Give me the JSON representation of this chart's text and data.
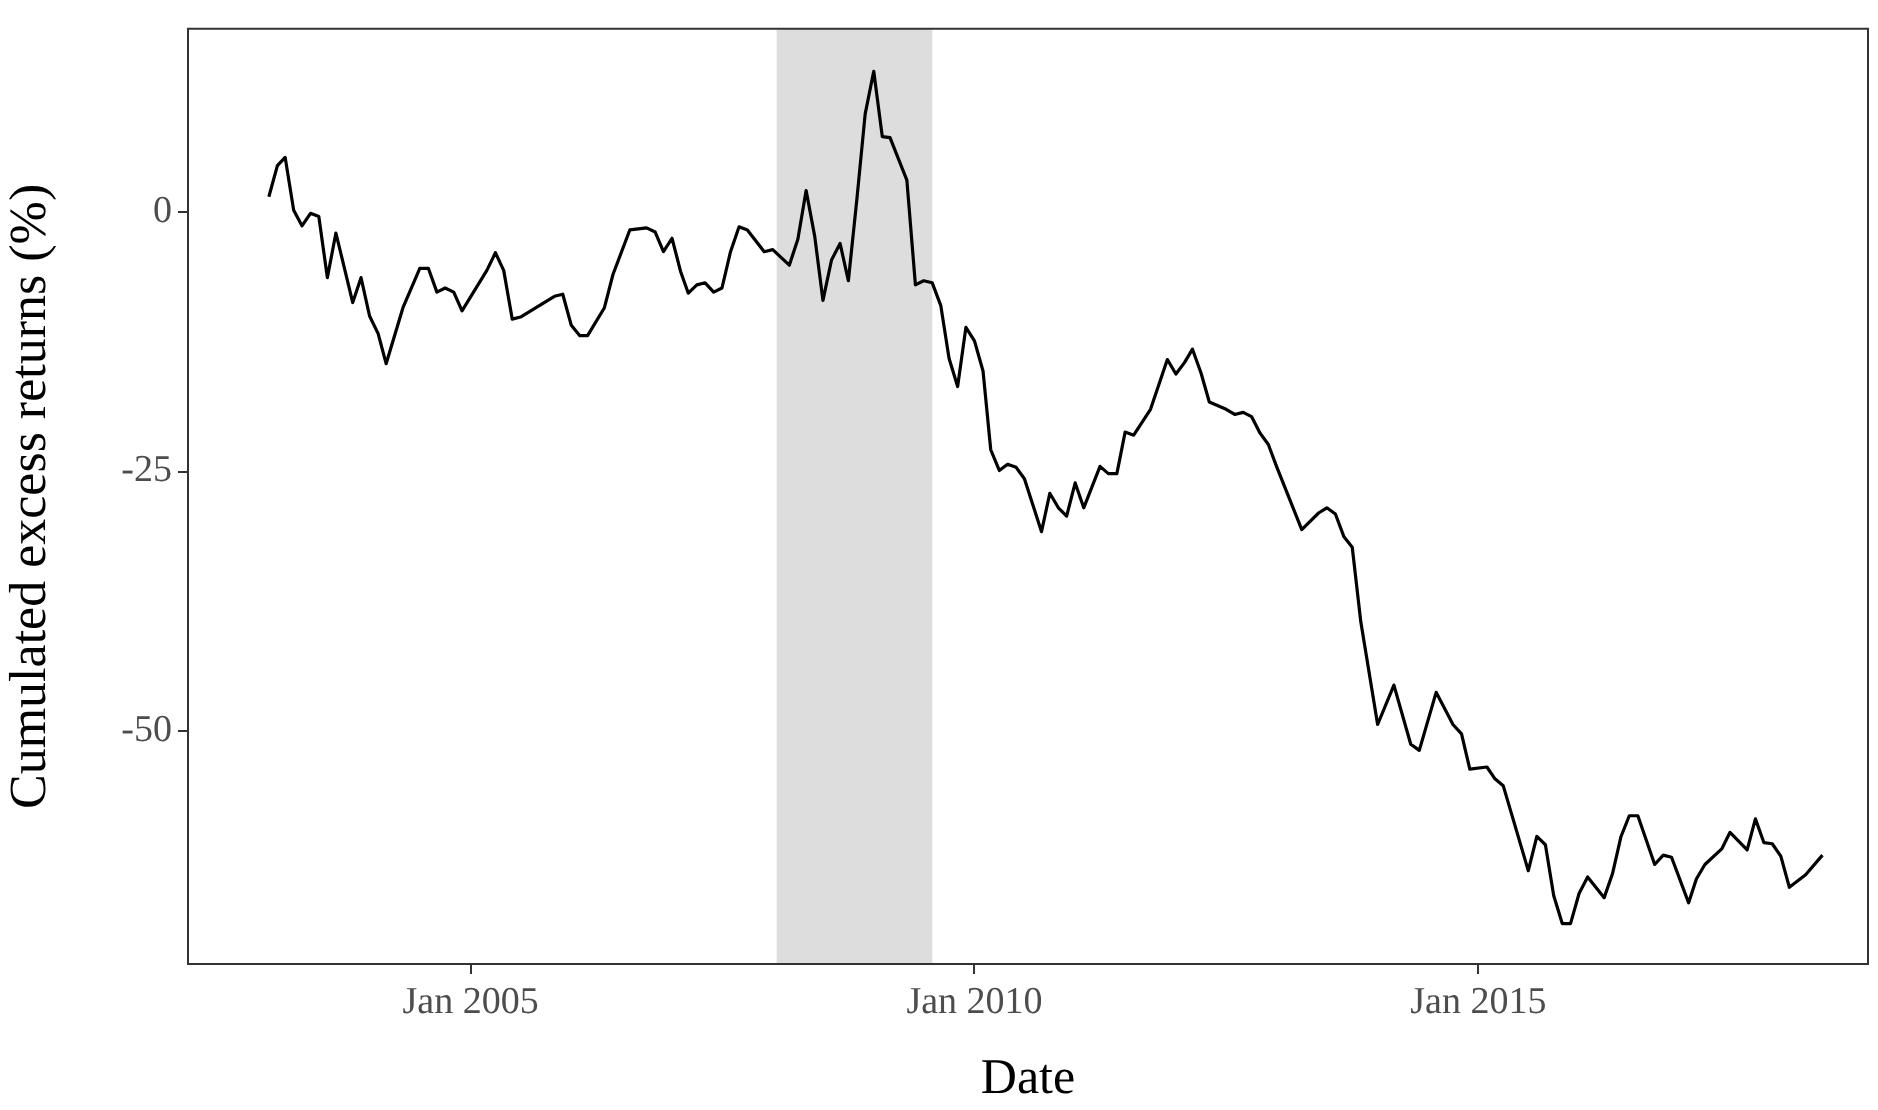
{
  "chart_data": {
    "type": "line",
    "xlabel": "Date",
    "ylabel": "Cumulated excess returns (%)",
    "x": [
      "2003-01",
      "2003-02",
      "2003-03",
      "2003-04",
      "2003-05",
      "2003-06",
      "2003-07",
      "2003-08",
      "2003-09",
      "2003-11",
      "2003-12",
      "2004-01",
      "2004-02",
      "2004-03",
      "2004-05",
      "2004-07",
      "2004-08",
      "2004-09",
      "2004-10",
      "2004-11",
      "2004-12",
      "2005-03",
      "2005-04",
      "2005-05",
      "2005-06",
      "2005-07",
      "2005-09",
      "2005-11",
      "2005-12",
      "2006-01",
      "2006-02",
      "2006-03",
      "2006-05",
      "2006-06",
      "2006-08",
      "2006-10",
      "2006-11",
      "2006-12",
      "2007-01",
      "2007-02",
      "2007-03",
      "2007-04",
      "2007-05",
      "2007-06",
      "2007-07",
      "2007-08",
      "2007-09",
      "2007-10",
      "2007-12",
      "2008-01",
      "2008-03",
      "2008-04",
      "2008-05",
      "2008-06",
      "2008-07",
      "2008-08",
      "2008-09",
      "2008-10",
      "2008-11",
      "2008-12",
      "2009-01",
      "2009-02",
      "2009-03",
      "2009-05",
      "2009-06",
      "2009-07",
      "2009-08",
      "2009-09",
      "2009-10",
      "2009-11",
      "2009-12",
      "2010-01",
      "2010-02",
      "2010-03",
      "2010-04",
      "2010-05",
      "2010-06",
      "2010-07",
      "2010-09",
      "2010-10",
      "2010-11",
      "2010-12",
      "2011-01",
      "2011-02",
      "2011-04",
      "2011-05",
      "2011-06",
      "2011-07",
      "2011-08",
      "2011-10",
      "2011-12",
      "2012-01",
      "2012-02",
      "2012-03",
      "2012-04",
      "2012-05",
      "2012-07",
      "2012-08",
      "2012-09",
      "2012-10",
      "2012-11",
      "2012-12",
      "2013-01",
      "2013-04",
      "2013-06",
      "2013-07",
      "2013-08",
      "2013-09",
      "2013-10",
      "2013-11",
      "2014-01",
      "2014-03",
      "2014-05",
      "2014-06",
      "2014-08",
      "2014-10",
      "2014-11",
      "2014-12",
      "2015-02",
      "2015-03",
      "2015-04",
      "2015-05",
      "2015-07",
      "2015-08",
      "2015-09",
      "2015-10",
      "2015-11",
      "2015-12",
      "2016-01",
      "2016-02",
      "2016-04",
      "2016-05",
      "2016-06",
      "2016-07",
      "2016-08",
      "2016-10",
      "2016-11",
      "2016-12",
      "2017-02",
      "2017-03",
      "2017-04",
      "2017-06",
      "2017-07",
      "2017-09",
      "2017-10",
      "2017-11",
      "2017-12",
      "2018-01",
      "2018-02",
      "2018-04",
      "2018-06"
    ],
    "values": [
      1.5,
      4.5,
      5.3,
      0.2,
      -1.3,
      -0.1,
      -0.4,
      -6.3,
      -2.0,
      -8.7,
      -6.3,
      -10.0,
      -11.7,
      -14.6,
      -9.2,
      -5.4,
      -5.4,
      -7.7,
      -7.3,
      -7.7,
      -9.5,
      -5.6,
      -3.9,
      -5.6,
      -10.3,
      -10.1,
      -9.1,
      -8.1,
      -7.9,
      -10.9,
      -11.9,
      -11.9,
      -9.2,
      -6.0,
      -1.7,
      -1.5,
      -1.9,
      -3.8,
      -2.5,
      -5.7,
      -7.8,
      -7.0,
      -6.8,
      -7.7,
      -7.3,
      -3.8,
      -1.4,
      -1.7,
      -3.8,
      -3.6,
      -5.1,
      -2.6,
      2.1,
      -2.3,
      -8.5,
      -4.6,
      -3.0,
      -6.6,
      1.3,
      9.5,
      13.6,
      7.3,
      7.2,
      3.1,
      -7.0,
      -6.6,
      -6.8,
      -9.0,
      -14.1,
      -16.8,
      -11.1,
      -12.4,
      -15.3,
      -22.9,
      -24.9,
      -24.3,
      -24.6,
      -25.7,
      -30.8,
      -27.1,
      -28.5,
      -29.3,
      -26.1,
      -28.5,
      -24.5,
      -25.2,
      -25.2,
      -21.2,
      -21.5,
      -19.0,
      -14.2,
      -15.6,
      -14.5,
      -13.2,
      -15.5,
      -18.3,
      -19.0,
      -19.5,
      -19.3,
      -19.7,
      -21.3,
      -22.4,
      -24.6,
      -30.6,
      -29.0,
      -28.5,
      -29.1,
      -31.3,
      -32.3,
      -39.5,
      -49.4,
      -45.6,
      -51.3,
      -51.9,
      -46.3,
      -49.4,
      -50.3,
      -53.7,
      -53.5,
      -54.6,
      -55.3,
      -58.0,
      -63.5,
      -60.2,
      -61.0,
      -65.9,
      -68.6,
      -68.6,
      -65.7,
      -64.1,
      -66.1,
      -63.8,
      -60.2,
      -58.2,
      -58.2,
      -62.9,
      -62.0,
      -62.2,
      -66.6,
      -64.3,
      -62.9,
      -61.4,
      -59.8,
      -61.5,
      -58.5,
      -60.8,
      -60.9,
      -62.1,
      -65.1,
      -63.9,
      -62.0
    ],
    "color": "#000000",
    "marker": "none",
    "line_style": "solid",
    "grid": false,
    "legend": false,
    "xlim": [
      "2002-03-14",
      "2018-11-13"
    ],
    "ylim": [
      -72.5,
      17.7
    ],
    "xticks": [
      {
        "value": "2005-01",
        "label": "Jan 2005"
      },
      {
        "value": "2010-01",
        "label": "Jan 2010"
      },
      {
        "value": "2015-01",
        "label": "Jan 2015"
      }
    ],
    "yticks": [
      -50,
      -25,
      0
    ],
    "bands": [
      {
        "axis": "x",
        "from": "2008-01-15",
        "to": "2009-08-01",
        "color": "#dddddd"
      }
    ]
  }
}
